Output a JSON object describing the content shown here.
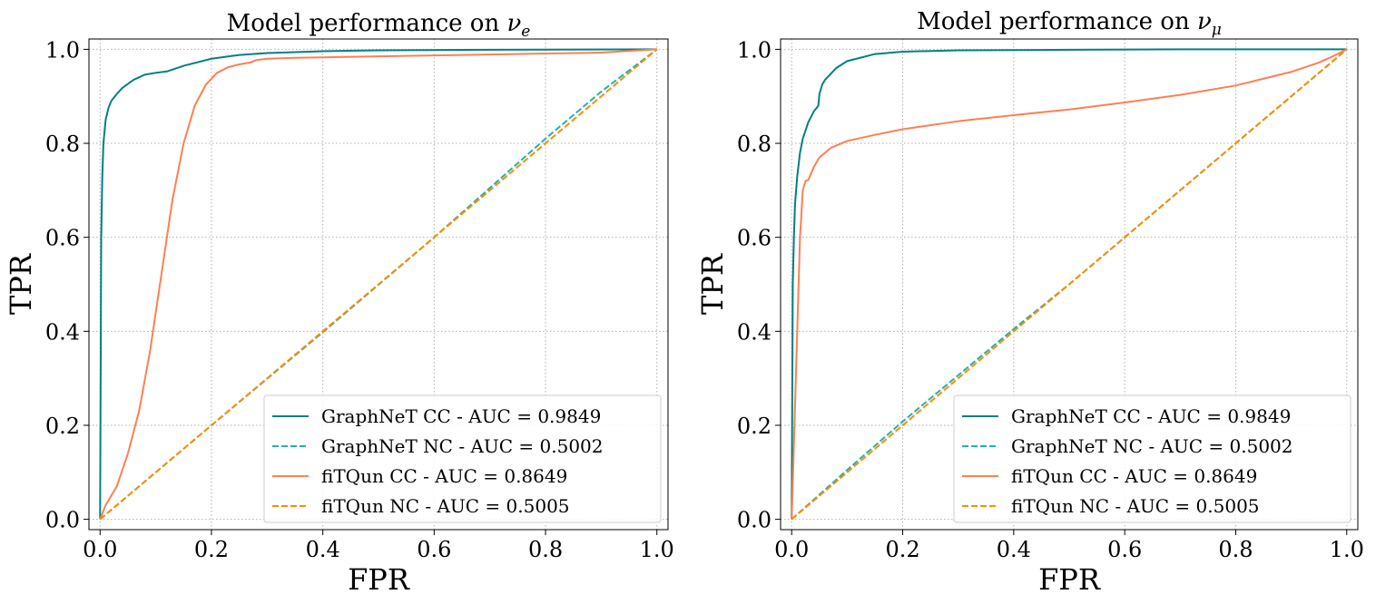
{
  "chart_data": [
    {
      "type": "line",
      "title": "Model performance on ",
      "title_symbol": "ν",
      "title_subscript": "e",
      "xlabel": "FPR",
      "ylabel": "TPR",
      "xlim": [
        -0.02,
        1.02
      ],
      "ylim": [
        -0.022,
        1.022
      ],
      "xticks": [
        "0.0",
        "0.2",
        "0.4",
        "0.6",
        "0.8",
        "1.0"
      ],
      "yticks": [
        "0.0",
        "0.2",
        "0.4",
        "0.6",
        "0.8",
        "1.0"
      ],
      "grid": true,
      "legend_position": "lower-right",
      "series": [
        {
          "name": "GraphNeT CC - AUC = 0.9849",
          "color": "#008080",
          "style": "solid",
          "x": [
            0,
            0.002,
            0.004,
            0.006,
            0.01,
            0.015,
            0.02,
            0.03,
            0.04,
            0.06,
            0.08,
            0.1,
            0.12,
            0.15,
            0.2,
            0.25,
            0.3,
            0.4,
            0.5,
            0.7,
            1.0
          ],
          "y": [
            0,
            0.6,
            0.73,
            0.8,
            0.85,
            0.875,
            0.89,
            0.905,
            0.918,
            0.935,
            0.946,
            0.95,
            0.953,
            0.965,
            0.98,
            0.988,
            0.992,
            0.996,
            0.998,
            0.999,
            1.0
          ]
        },
        {
          "name": "GraphNeT NC - AUC = 0.5002",
          "color": "#20B2AA",
          "style": "dashed",
          "x": [
            0,
            0.2,
            0.4,
            0.6,
            0.8,
            0.9,
            1.0
          ],
          "y": [
            0,
            0.2,
            0.398,
            0.6,
            0.81,
            0.91,
            1.0
          ]
        },
        {
          "name": "fiTQun CC - AUC = 0.8649",
          "color": "#FF7F50",
          "style": "solid",
          "x": [
            0,
            0.01,
            0.03,
            0.05,
            0.07,
            0.09,
            0.11,
            0.13,
            0.15,
            0.17,
            0.19,
            0.21,
            0.23,
            0.25,
            0.27,
            0.28,
            0.3,
            0.35,
            0.4,
            0.5,
            0.6,
            0.7,
            0.8,
            0.9,
            1.0
          ],
          "y": [
            0,
            0.03,
            0.07,
            0.14,
            0.23,
            0.36,
            0.52,
            0.68,
            0.8,
            0.88,
            0.925,
            0.95,
            0.962,
            0.968,
            0.972,
            0.977,
            0.98,
            0.982,
            0.983,
            0.985,
            0.987,
            0.989,
            0.991,
            0.993,
            1.0
          ]
        },
        {
          "name": "fiTQun NC - AUC = 0.5005",
          "color": "#FF8C00",
          "style": "dashed",
          "x": [
            0,
            0.2,
            0.4,
            0.6,
            0.8,
            1.0
          ],
          "y": [
            0,
            0.2,
            0.4,
            0.6,
            0.8,
            1.0
          ]
        }
      ]
    },
    {
      "type": "line",
      "title": "Model performance on ",
      "title_symbol": "ν",
      "title_subscript": "μ",
      "xlabel": "FPR",
      "ylabel": "TPR",
      "xlim": [
        -0.02,
        1.02
      ],
      "ylim": [
        -0.022,
        1.022
      ],
      "xticks": [
        "0.0",
        "0.2",
        "0.4",
        "0.6",
        "0.8",
        "1.0"
      ],
      "yticks": [
        "0.0",
        "0.2",
        "0.4",
        "0.6",
        "0.8",
        "1.0"
      ],
      "grid": true,
      "legend_position": "lower-right",
      "series": [
        {
          "name": "GraphNeT CC - AUC = 0.9849",
          "color": "#008080",
          "style": "solid",
          "x": [
            0,
            0.002,
            0.004,
            0.006,
            0.01,
            0.015,
            0.02,
            0.03,
            0.04,
            0.048,
            0.05,
            0.055,
            0.06,
            0.08,
            0.1,
            0.15,
            0.2,
            0.3,
            0.5,
            0.7,
            1.0
          ],
          "y": [
            0,
            0.5,
            0.6,
            0.67,
            0.73,
            0.78,
            0.81,
            0.845,
            0.868,
            0.88,
            0.905,
            0.925,
            0.935,
            0.96,
            0.975,
            0.99,
            0.995,
            0.998,
            0.999,
            1.0,
            1.0
          ]
        },
        {
          "name": "GraphNeT NC - AUC = 0.5002",
          "color": "#20B2AA",
          "style": "dashed",
          "x": [
            0,
            0.1,
            0.2,
            0.4,
            0.5,
            0.6,
            0.8,
            1.0
          ],
          "y": [
            0,
            0.105,
            0.208,
            0.405,
            0.5,
            0.6,
            0.8,
            1.0
          ]
        },
        {
          "name": "fiTQun CC - AUC = 0.8649",
          "color": "#FF7F50",
          "style": "solid",
          "x": [
            0,
            0.005,
            0.01,
            0.015,
            0.02,
            0.025,
            0.03,
            0.04,
            0.05,
            0.07,
            0.1,
            0.15,
            0.2,
            0.3,
            0.4,
            0.5,
            0.6,
            0.7,
            0.8,
            0.9,
            0.95,
            0.98,
            1.0
          ],
          "y": [
            0,
            0.2,
            0.4,
            0.6,
            0.7,
            0.72,
            0.722,
            0.75,
            0.77,
            0.79,
            0.805,
            0.818,
            0.83,
            0.847,
            0.86,
            0.872,
            0.887,
            0.903,
            0.923,
            0.952,
            0.972,
            0.988,
            1.0
          ]
        },
        {
          "name": "fiTQun NC - AUC = 0.5005",
          "color": "#FF8C00",
          "style": "dashed",
          "x": [
            0,
            0.2,
            0.4,
            0.6,
            0.8,
            1.0
          ],
          "y": [
            0,
            0.2,
            0.4,
            0.6,
            0.8,
            1.0
          ]
        }
      ]
    }
  ]
}
